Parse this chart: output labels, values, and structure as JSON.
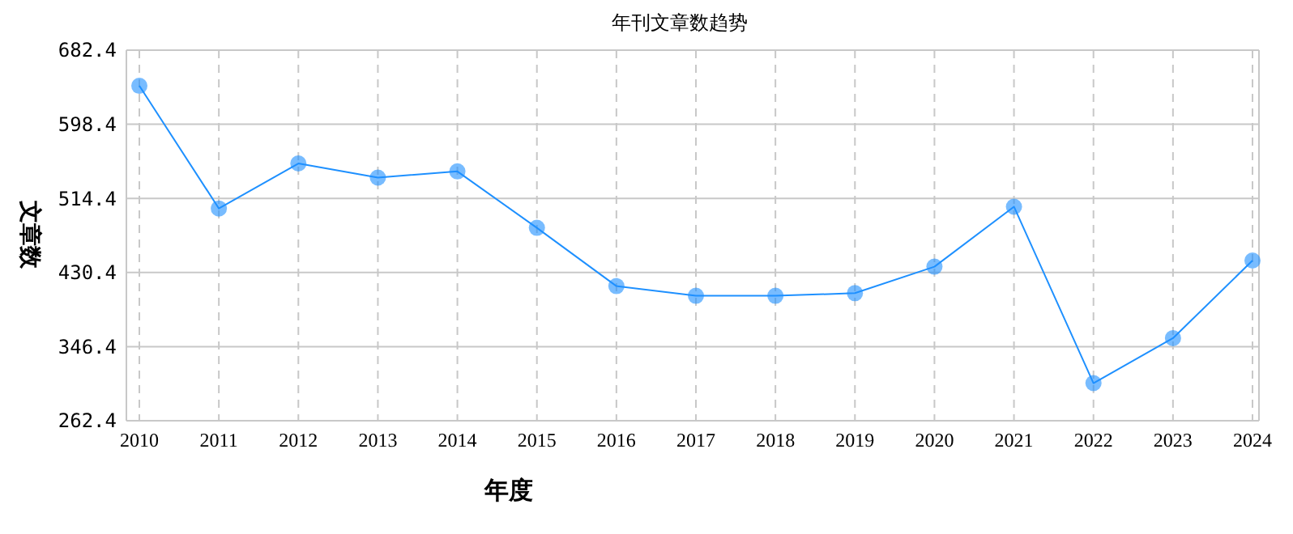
{
  "chart_data": {
    "type": "line",
    "title": "年刊文章数趋势",
    "xlabel": "年度",
    "ylabel": "文章数",
    "categories": [
      "2010",
      "2011",
      "2012",
      "2013",
      "2014",
      "2015",
      "2016",
      "2017",
      "2018",
      "2019",
      "2020",
      "2021",
      "2022",
      "2023",
      "2024"
    ],
    "series": [
      {
        "color": "#1e90ff",
        "values": [
          642,
          503,
          554,
          538,
          545,
          481,
          415,
          404,
          404,
          407,
          437,
          505,
          305,
          356,
          444
        ]
      }
    ],
    "ylim": [
      262.4,
      682.4
    ],
    "yticks": [
      {
        "value": 262.4,
        "label": "262.4"
      },
      {
        "value": 346.4,
        "label": "346.4"
      },
      {
        "value": 430.4,
        "label": "430.4"
      },
      {
        "value": 514.4,
        "label": "514.4"
      },
      {
        "value": 598.4,
        "label": "598.4"
      },
      {
        "value": 682.4,
        "label": "682.4"
      }
    ],
    "grid": true,
    "marker": "circle",
    "line_style": "solid"
  }
}
